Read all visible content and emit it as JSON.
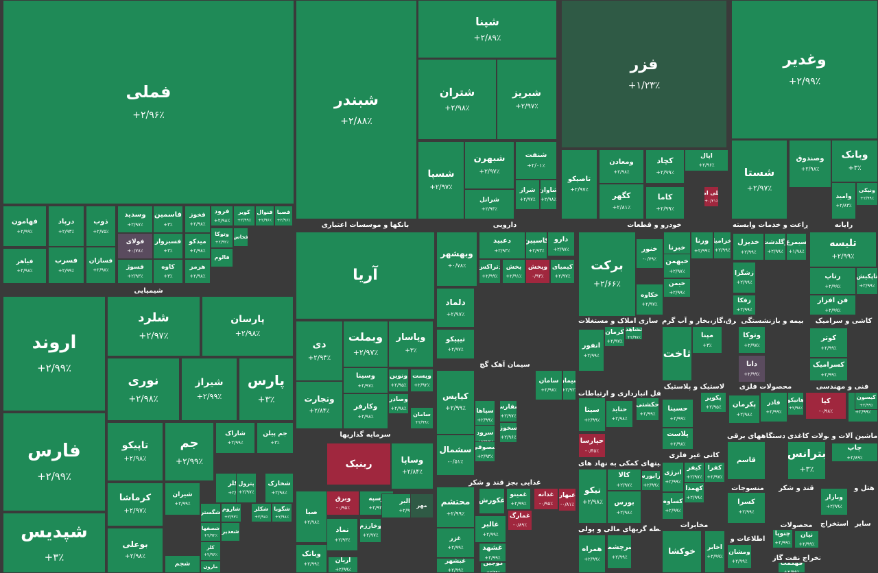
{
  "colors": {
    "up": "#1f8a57",
    "down": "#a0273e",
    "flat": "#5a4b5e",
    "border": "#3a3a3a"
  },
  "sectors": [
    {
      "id": "banks",
      "label": "بانکها و موسسات اعتباری"
    },
    {
      "id": "pharma",
      "label": "دارویی"
    },
    {
      "id": "auto",
      "label": "خودرو و قطعات"
    },
    {
      "id": "agri",
      "label": "زراعت و خدمات وابسته"
    },
    {
      "id": "rayaneh",
      "label": "رایانه"
    },
    {
      "id": "chem",
      "label": "شیمیایی"
    },
    {
      "id": "realestate",
      "label": "انبوه سازی املاک و مستغلات"
    },
    {
      "id": "utility",
      "label": "عرضه برق،گاز،بخار و آب گرم"
    },
    {
      "id": "insurance",
      "label": "بیمه و بازنشستگی"
    },
    {
      "id": "tile",
      "label": "کاشی و سرامیک"
    },
    {
      "id": "cement",
      "label": "سیمان آهک گچ"
    },
    {
      "id": "transport",
      "label": "حمل و نقل انبارداری و ارتباطات"
    },
    {
      "id": "plastic",
      "label": "لاستیک و پلاستیک"
    },
    {
      "id": "metalprod",
      "label": "محصولات فلزی"
    },
    {
      "id": "engineering",
      "label": "فنی و مهندسی"
    },
    {
      "id": "invest",
      "label": "سرمایه گذاریها"
    },
    {
      "id": "electric",
      "label": "دستگاههای برقی"
    },
    {
      "id": "paper",
      "label": "محصولات کاغذی"
    },
    {
      "id": "machinery",
      "label": "ماشین آلات و"
    },
    {
      "id": "financial",
      "label": "فعالیتهای کمکی به نهاد های"
    },
    {
      "id": "nonmetal",
      "label": "کانی غیر فلزی"
    },
    {
      "id": "sugar",
      "label": "قند و شکر"
    },
    {
      "id": "textile",
      "label": "منسوجات"
    },
    {
      "id": "hotel",
      "label": "هتل و"
    },
    {
      "id": "food",
      "label": "غذایی بجز قند و شکر"
    },
    {
      "id": "telecom",
      "label": "مخابرات"
    },
    {
      "id": "products",
      "label": "محصولات"
    },
    {
      "id": "monetary",
      "label": "واسطه گریهای مالی و پولی"
    },
    {
      "id": "info",
      "label": "اطلاعات و"
    },
    {
      "id": "oilext",
      "label": "استخراج نفت گاز"
    },
    {
      "id": "other",
      "label": "سایر"
    },
    {
      "id": "extraction",
      "label": "استخراج"
    }
  ],
  "tiles": [
    {
      "name": "فملی",
      "pct": "+۲/۹۶٪",
      "c": "up"
    },
    {
      "name": "شبندر",
      "pct": "+۲/۸۸٪",
      "c": "up"
    },
    {
      "name": "شپنا",
      "pct": "+۲/۸۹٪",
      "c": "up"
    },
    {
      "name": "فزر",
      "pct": "+۱/۲۳٪",
      "c": "dark"
    },
    {
      "name": "وغدیر",
      "pct": "+۲/۹۹٪",
      "c": "up"
    },
    {
      "name": "شتران",
      "pct": "+۲/۹۸٪",
      "c": "up"
    },
    {
      "name": "شبریز",
      "pct": "+۲/۹۷٪",
      "c": "up"
    },
    {
      "name": "شسپا",
      "pct": "+۲/۹۷٪",
      "c": "up"
    },
    {
      "name": "شبهرن",
      "pct": "+۲/۹۷٪",
      "c": "up"
    },
    {
      "name": "شنفت",
      "pct": "+۲/۰۱٪",
      "c": "up"
    },
    {
      "name": "شراز",
      "pct": "+۲/۹۷٪",
      "c": "up"
    },
    {
      "name": "شاوان",
      "pct": "+۲/۹۸٪",
      "c": "up"
    },
    {
      "name": "شرانل",
      "pct": "+۲/۹۳٪",
      "c": "up"
    },
    {
      "name": "تاصیکو",
      "pct": "+۲/۹۷٪",
      "c": "up"
    },
    {
      "name": "ومعادن",
      "pct": "+۲/۹۸٪",
      "c": "up"
    },
    {
      "name": "کچاد",
      "pct": "+۲/۹۹٪",
      "c": "up"
    },
    {
      "name": "کگهر",
      "pct": "+۲/۸۱٪",
      "c": "up"
    },
    {
      "name": "کاما",
      "pct": "+۲/۹۹٪",
      "c": "up"
    },
    {
      "name": "اپال",
      "pct": "+۲/۹۶٪",
      "c": "up"
    },
    {
      "name": "فملی امیر",
      "pct": "+۰/۲۱٪",
      "c": "red"
    },
    {
      "name": "شستا",
      "pct": "+۲/۹۷٪",
      "c": "up"
    },
    {
      "name": "وصندوق",
      "pct": "+۲/۹۸٪",
      "c": "up"
    },
    {
      "name": "وبانک",
      "pct": "+۳٪",
      "c": "up"
    },
    {
      "name": "وامید",
      "pct": "+۲/۸۳٪",
      "c": "up"
    },
    {
      "name": "ونیکی",
      "pct": "+۲/۹۹٪",
      "c": "up"
    },
    {
      "name": "فهامون",
      "pct": "+۲/۹۹٪",
      "c": "up"
    },
    {
      "name": "درپاد",
      "pct": "+۲/۹۳٪",
      "c": "up"
    },
    {
      "name": "ذوب",
      "pct": "+۲/۷۵٪",
      "c": "up"
    },
    {
      "name": "وسدید",
      "pct": "+۲/۹۷٪",
      "c": "up"
    },
    {
      "name": "فاسمین",
      "pct": "+۳٪",
      "c": "up"
    },
    {
      "name": "فخوز",
      "pct": "+۲/۹۸٪",
      "c": "up"
    },
    {
      "name": "فرود",
      "pct": "+۲/۹۸٪",
      "c": "up"
    },
    {
      "name": "کویر",
      "pct": "+۲/۹۹٪",
      "c": "up"
    },
    {
      "name": "فنوال",
      "pct": "+۲/۹۶٪",
      "c": "up"
    },
    {
      "name": "فصبا",
      "pct": "+۲/۹۶٪",
      "c": "up"
    },
    {
      "name": "فولای",
      "pct": "+۰/۷۸٪",
      "c": "flat"
    },
    {
      "name": "فسبزوار",
      "pct": "+۳٪",
      "c": "up"
    },
    {
      "name": "میدکو",
      "pct": "+۲/۹۸٪",
      "c": "up"
    },
    {
      "name": "وتوکا",
      "pct": "+۲/۹۲٪",
      "c": "up"
    },
    {
      "name": "فخاس",
      "pct": "",
      "c": "up"
    },
    {
      "name": "فسرب",
      "pct": "+۲/۹۹٪",
      "c": "up"
    },
    {
      "name": "فسازان",
      "pct": "+۲/۹۸٪",
      "c": "up"
    },
    {
      "name": "فیاهر",
      "pct": "+۲/۹۸٪",
      "c": "up"
    },
    {
      "name": "فسوژ",
      "pct": "+۲/۹۳٪",
      "c": "up"
    },
    {
      "name": "کاوه",
      "pct": "+۳٪",
      "c": "up"
    },
    {
      "name": "هرمز",
      "pct": "+۲/۹۸٪",
      "c": "up"
    },
    {
      "name": "فالوم",
      "pct": "",
      "c": "up"
    },
    {
      "name": "اروند",
      "pct": "+۲/۹۹٪",
      "c": "up"
    },
    {
      "name": "شلرد",
      "pct": "+۲/۹۷٪",
      "c": "up"
    },
    {
      "name": "پارسان",
      "pct": "+۲/۹۸٪",
      "c": "up"
    },
    {
      "name": "نوری",
      "pct": "+۲/۹۸٪",
      "c": "up"
    },
    {
      "name": "شیراز",
      "pct": "+۲/۹۹٪",
      "c": "up"
    },
    {
      "name": "پارس",
      "pct": "+۳٪",
      "c": "up"
    },
    {
      "name": "فارس",
      "pct": "+۲/۹۹٪",
      "c": "up"
    },
    {
      "name": "تاپیکو",
      "pct": "+۲/۹۸٪",
      "c": "up"
    },
    {
      "name": "جم",
      "pct": "+۲/۹۹٪",
      "c": "up"
    },
    {
      "name": "شاراک",
      "pct": "+۲/۹۹٪",
      "c": "up"
    },
    {
      "name": "جم پیلن",
      "pct": "+۳٪",
      "c": "up"
    },
    {
      "name": "کرماشا",
      "pct": "+۲/۹۷٪",
      "c": "up"
    },
    {
      "name": "شپدیس",
      "pct": "+۳٪",
      "c": "up"
    },
    {
      "name": "بوعلی",
      "pct": "+۲/۹۸٪",
      "c": "up"
    },
    {
      "name": "شکلر",
      "pct": "+۲/۹۸٪",
      "c": "up"
    },
    {
      "name": "پترول",
      "pct": "+۲/۹۷٪",
      "c": "up"
    },
    {
      "name": "شخارک",
      "pct": "+۲/۹۸٪",
      "c": "up"
    },
    {
      "name": "شیران",
      "pct": "+۲/۹۹٪",
      "c": "up"
    },
    {
      "name": "شگستر",
      "pct": "",
      "c": "up"
    },
    {
      "name": "شاروم",
      "pct": "+۲/۹۳٪",
      "c": "up"
    },
    {
      "name": "شکلر",
      "pct": "+۲/۹۸٪",
      "c": "up"
    },
    {
      "name": "شگویا",
      "pct": "+۲/۹۸٪",
      "c": "up"
    },
    {
      "name": "شصفها",
      "pct": "+۲/۹۲٪",
      "c": "up"
    },
    {
      "name": "شعدیر",
      "pct": "",
      "c": "up"
    },
    {
      "name": "کلر",
      "pct": "+۲/۹۶٪",
      "c": "up"
    },
    {
      "name": "شجم",
      "pct": "",
      "c": "up"
    },
    {
      "name": "مارون",
      "pct": "",
      "c": "up"
    },
    {
      "name": "آریا",
      "pct": "",
      "c": "up"
    },
    {
      "name": "وبملت",
      "pct": "+۲/۹۷٪",
      "c": "up"
    },
    {
      "name": "دی",
      "pct": "+۲/۹۴٪",
      "c": "up"
    },
    {
      "name": "وپاسار",
      "pct": "+۳٪",
      "c": "up"
    },
    {
      "name": "وسینا",
      "pct": "+۲/۹۷٪",
      "c": "up"
    },
    {
      "name": "وتجارت",
      "pct": "+۲/۸۴٪",
      "c": "up"
    },
    {
      "name": "ونوین",
      "pct": "+۲/۹۵٪",
      "c": "up"
    },
    {
      "name": "وپست",
      "pct": "+۲/۹۲٪",
      "c": "up"
    },
    {
      "name": "وکارفر",
      "pct": "+۲/۹۸٪",
      "c": "up"
    },
    {
      "name": "وصادر",
      "pct": "+۲/۹۸٪",
      "c": "up"
    },
    {
      "name": "سامان",
      "pct": "+۲/۹۹٪",
      "c": "up"
    },
    {
      "name": "وبهشهر",
      "pct": "+۰/۷۸٪",
      "c": "up"
    },
    {
      "name": "دعبید",
      "pct": "+۲/۹۳٪",
      "c": "up"
    },
    {
      "name": "کاسپین",
      "pct": "+۲/۹۳٪",
      "c": "up"
    },
    {
      "name": "دارو",
      "pct": "+۲/۹۷٪",
      "c": "up"
    },
    {
      "name": "دتراکس",
      "pct": "+۲/۹۹٪",
      "c": "up"
    },
    {
      "name": "پخش",
      "pct": "+۲/۹۱٪",
      "c": "up"
    },
    {
      "name": "وپخش",
      "pct": "۰/۹۳٪",
      "c": "red"
    },
    {
      "name": "کیمیای",
      "pct": "+۲/۹۷٪",
      "c": "up"
    },
    {
      "name": "دلماد",
      "pct": "+۲/۹۷٪",
      "c": "up"
    },
    {
      "name": "تیپیکو",
      "pct": "+۲/۹۷٪",
      "c": "up"
    },
    {
      "name": "برکت",
      "pct": "+۲/۶۶٪",
      "c": "up"
    },
    {
      "name": "خنور",
      "pct": "-۰/۷۹٪",
      "c": "grey"
    },
    {
      "name": "خبرنا",
      "pct": "+۲/۹۹٪",
      "c": "up"
    },
    {
      "name": "ورنا",
      "pct": "+۲/۹۹٪",
      "c": "up"
    },
    {
      "name": "خزامیا",
      "pct": "+۲/۹۹٪",
      "c": "up"
    },
    {
      "name": "خکاوه",
      "pct": "+۲/۹۷٪",
      "c": "up"
    },
    {
      "name": "خبهمن",
      "pct": "+۲/۹۷٪",
      "c": "up"
    },
    {
      "name": "خیمن",
      "pct": "+۲/۹۹٪",
      "c": "up"
    },
    {
      "name": "خدیزل",
      "pct": "+۲/۹۹٪",
      "c": "up"
    },
    {
      "name": "زگلدشت",
      "pct": "+۲/۹۹٪",
      "c": "up"
    },
    {
      "name": "سیمرغ",
      "pct": "+۱/۹۸٪",
      "c": "up"
    },
    {
      "name": "زشگزا",
      "pct": "+۲/۹۹٪",
      "c": "up"
    },
    {
      "name": "زفکا",
      "pct": "+۲/۹۹٪",
      "c": "up"
    },
    {
      "name": "تلیسه",
      "pct": "+۲/۹۹٪",
      "c": "up"
    },
    {
      "name": "رتاپ",
      "pct": "+۲/۹۹٪",
      "c": "up"
    },
    {
      "name": "فن افزار",
      "pct": "+۲/۹۹٪",
      "c": "up"
    },
    {
      "name": "تاپکیش",
      "pct": "+۲/۹۹٪",
      "c": "up"
    },
    {
      "name": "انفور",
      "pct": "+۲/۹۹٪",
      "c": "up"
    },
    {
      "name": "کرمان",
      "pct": "+۲/۹۷٪",
      "c": "up"
    },
    {
      "name": "ثشاهد",
      "pct": "+۲/۹۷٪",
      "c": "up"
    },
    {
      "name": "ثاخت",
      "pct": "",
      "c": "up"
    },
    {
      "name": "مپنا",
      "pct": "+۳٪",
      "c": "up"
    },
    {
      "name": "وتوکا",
      "pct": "+۲/۹۷٪",
      "c": "up"
    },
    {
      "name": "دانا",
      "pct": "+۲/۹۹٪",
      "c": "flat"
    },
    {
      "name": "کوثر",
      "pct": "+۲/۹۹٪",
      "c": "up"
    },
    {
      "name": "کسرامیک",
      "pct": "+۲/۹۹٪",
      "c": "up"
    },
    {
      "name": "کیاپس",
      "pct": "+۲/۹۹٪",
      "c": "up"
    },
    {
      "name": "سامان",
      "pct": "+۲/۹۸٪",
      "c": "up"
    },
    {
      "name": "سیمان",
      "pct": "+۲/۹۲٪",
      "c": "up"
    },
    {
      "name": "سپاها",
      "pct": "+۲/۹۹٪",
      "c": "up"
    },
    {
      "name": "سفارس",
      "pct": "+۲/۹۷٪",
      "c": "up"
    },
    {
      "name": "سرود",
      "pct": "+۲/۹۹٪",
      "c": "up"
    },
    {
      "name": "سخوز",
      "pct": "+۲/۹۶٪",
      "c": "up"
    },
    {
      "name": "سشمال",
      "pct": "-۰/۵۱٪",
      "c": "up"
    },
    {
      "name": "سصوفی",
      "pct": "+۲/۹۳٪",
      "c": "up"
    },
    {
      "name": "سیتا",
      "pct": "+۲/۹۹٪",
      "c": "up"
    },
    {
      "name": "حکشتی",
      "pct": "+۲/۹۹٪",
      "c": "up"
    },
    {
      "name": "حتاید",
      "pct": "+۲/۹۸٪",
      "c": "up"
    },
    {
      "name": "حپارسا",
      "pct": "-۰/۴۵٪",
      "c": "red"
    },
    {
      "name": "حسینا",
      "pct": "+۲/۹۹٪",
      "c": "up"
    },
    {
      "name": "پکویر",
      "pct": "+۲/۹۵٪",
      "c": "up"
    },
    {
      "name": "پلاست",
      "pct": "+۲/۹۸٪",
      "c": "up"
    },
    {
      "name": "پکرمان",
      "pct": "+۲/۹۸٪",
      "c": "up"
    },
    {
      "name": "فاذر",
      "pct": "+۲/۹۹٪",
      "c": "up"
    },
    {
      "name": "هانیکو",
      "pct": "+۲/۹۸٪",
      "c": "up"
    },
    {
      "name": "کیا",
      "pct": "-۰/۹۸٪",
      "c": "red"
    },
    {
      "name": "رمپنا",
      "pct": "+۲/۹۹٪",
      "c": "up"
    },
    {
      "name": "کیسون",
      "pct": "+۲/۹۹٪",
      "c": "up"
    },
    {
      "name": "ربنیک",
      "pct": "",
      "c": "red"
    },
    {
      "name": "وساپا",
      "pct": "+۲/۸۴٪",
      "c": "up"
    },
    {
      "name": "صبا",
      "pct": "+۲/۹۸٪",
      "c": "up"
    },
    {
      "name": "وبرق",
      "pct": "-۰/۹۵٪",
      "c": "red"
    },
    {
      "name": "وسپه",
      "pct": "+۲/۹۳٪",
      "c": "up"
    },
    {
      "name": "نماد",
      "pct": "+۲/۹۳٪",
      "c": "up"
    },
    {
      "name": "وخارزم",
      "pct": "+۲/۹۷٪",
      "c": "up"
    },
    {
      "name": "والبر",
      "pct": "+۲/۹۹٪",
      "c": "up"
    },
    {
      "name": "وبانک",
      "pct": "+۲/۹۹٪",
      "c": "up"
    },
    {
      "name": "آریان",
      "pct": "+۲/۹۹٪",
      "c": "up"
    },
    {
      "name": "مهر",
      "pct": "",
      "c": "dark"
    },
    {
      "name": "قاسم",
      "pct": "",
      "c": "up"
    },
    {
      "name": "بترانس",
      "pct": "+۳٪",
      "c": "up"
    },
    {
      "name": "چاپ",
      "pct": "+۲/۸۹٪",
      "c": "up"
    },
    {
      "name": "تیکو",
      "pct": "+۲/۹۸٪",
      "c": "up"
    },
    {
      "name": "کالا",
      "pct": "+۲/۹۷٪",
      "c": "up"
    },
    {
      "name": "فرابورس",
      "pct": "+۲/۹۹٪",
      "c": "up"
    },
    {
      "name": "بورس",
      "pct": "+۲/۹۸٪",
      "c": "up"
    },
    {
      "name": "انرژی",
      "pct": "+۲/۹۹٪",
      "c": "up"
    },
    {
      "name": "کیفر",
      "pct": "+۲/۹۷٪",
      "c": "up"
    },
    {
      "name": "کفرا",
      "pct": "+۲/۹۷٪",
      "c": "up"
    },
    {
      "name": "کهمدا",
      "pct": "+۲/۹۹٪",
      "c": "up"
    },
    {
      "name": "کساوه",
      "pct": "+۲/۹۹٪",
      "c": "up"
    },
    {
      "name": "کسرا",
      "pct": "+۲/۹۹٪",
      "c": "up"
    },
    {
      "name": "محتشم",
      "pct": "+۲/۹۹٪",
      "c": "up"
    },
    {
      "name": "غزر",
      "pct": "+۲/۹۹٪",
      "c": "up"
    },
    {
      "name": "غبشهر",
      "pct": "+۲/۹۹٪",
      "c": "up"
    },
    {
      "name": "غکورش",
      "pct": "",
      "c": "up"
    },
    {
      "name": "غمینو",
      "pct": "+۲/۹۹٪",
      "c": "up"
    },
    {
      "name": "غدانه",
      "pct": "-۰/۹۵٪",
      "c": "red"
    },
    {
      "name": "غبهار",
      "pct": "-۰/۸۱٪",
      "c": "red"
    },
    {
      "name": "غالبر",
      "pct": "+۲/۹۹٪",
      "c": "up"
    },
    {
      "name": "غمارگ",
      "pct": "-۰/۸۹٪",
      "c": "red"
    },
    {
      "name": "غشهد",
      "pct": "+۲/۹۹٪",
      "c": "up"
    },
    {
      "name": "کوجین",
      "pct": "+۲/۹۹٪",
      "c": "up"
    },
    {
      "name": "خوکشا",
      "pct": "",
      "c": "up"
    },
    {
      "name": "اخابر",
      "pct": "+۲/۹۹٪",
      "c": "up"
    },
    {
      "name": "همراه",
      "pct": "+۲/۹۹٪",
      "c": "up"
    },
    {
      "name": "سرچشمه",
      "pct": "+۲/۹۹٪",
      "c": "up"
    },
    {
      "name": "ومشان",
      "pct": "+۲/۹۹٪",
      "c": "up"
    },
    {
      "name": "وبازار",
      "pct": "+۲/۹۹٪",
      "c": "up"
    },
    {
      "name": "چنوپا",
      "pct": "+۲/۹۹٪",
      "c": "grey"
    },
    {
      "name": "نیان",
      "pct": "+۲/۹۹٪",
      "c": "up"
    },
    {
      "name": "قهکمت",
      "pct": "+۲/۹۹٪",
      "c": "up"
    },
    {
      "name": "حفاری",
      "pct": "",
      "c": "up"
    }
  ]
}
